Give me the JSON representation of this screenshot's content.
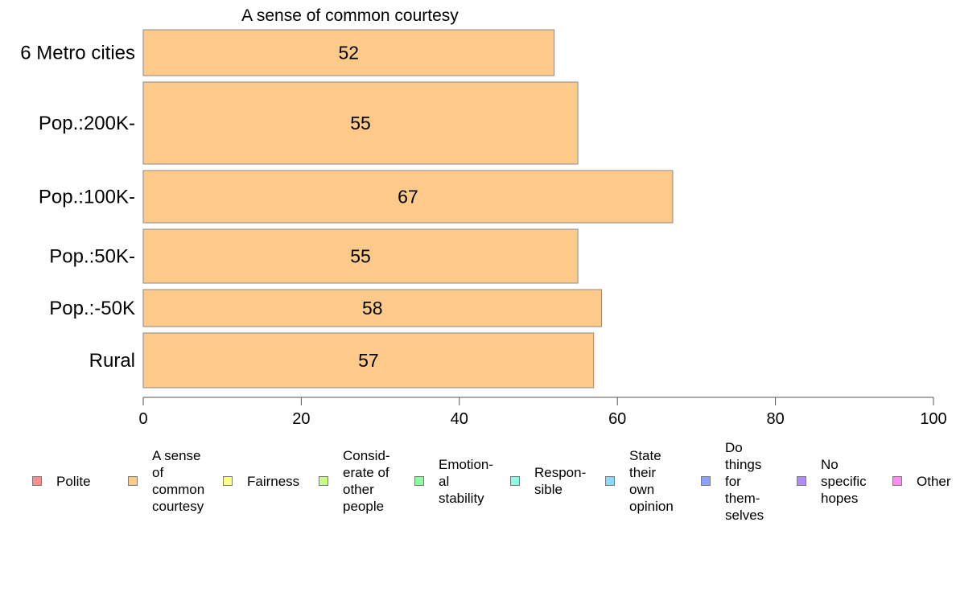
{
  "chart_data": {
    "type": "bar",
    "orientation": "horizontal",
    "title": "A sense of common courtesy",
    "categories": [
      "6 Metro cities",
      "Pop.:200K-",
      "Pop.:100K-",
      "Pop.:50K-",
      "Pop.:-50K",
      "Rural"
    ],
    "series": [
      {
        "name": "A sense of common courtesy",
        "values": [
          52,
          55,
          67,
          55,
          58,
          57
        ],
        "color": "#fdca8a"
      }
    ],
    "data_labels": [
      "52",
      "55",
      "67",
      "55",
      "58",
      "57"
    ],
    "xlim": [
      0,
      100
    ],
    "xticks": [
      "0",
      "20",
      "40",
      "60",
      "80",
      "100"
    ],
    "grid": false,
    "legend_position": "bottom"
  },
  "legend": [
    {
      "label": "Polite",
      "color": "#fd8c8c"
    },
    {
      "label": "A sense\nof\ncommon\ncourtesy",
      "color": "#fdca8a"
    },
    {
      "label": "Fairness",
      "color": "#fdfd8c"
    },
    {
      "label": "Consid-\nerate of\nother\npeople",
      "color": "#c8fd8c"
    },
    {
      "label": "Emotion-\nal\nstability",
      "color": "#8cfd9e"
    },
    {
      "label": "Respon-\nsible",
      "color": "#8cfde0"
    },
    {
      "label": "State\ntheir\nown\nopinion",
      "color": "#8cdafd"
    },
    {
      "label": "Do\nthings\nfor\nthem-\nselves",
      "color": "#8ca0fd"
    },
    {
      "label": "No\nspecific\nhopes",
      "color": "#b08cfd"
    },
    {
      "label": "Other",
      "color": "#fd8cf0"
    }
  ]
}
